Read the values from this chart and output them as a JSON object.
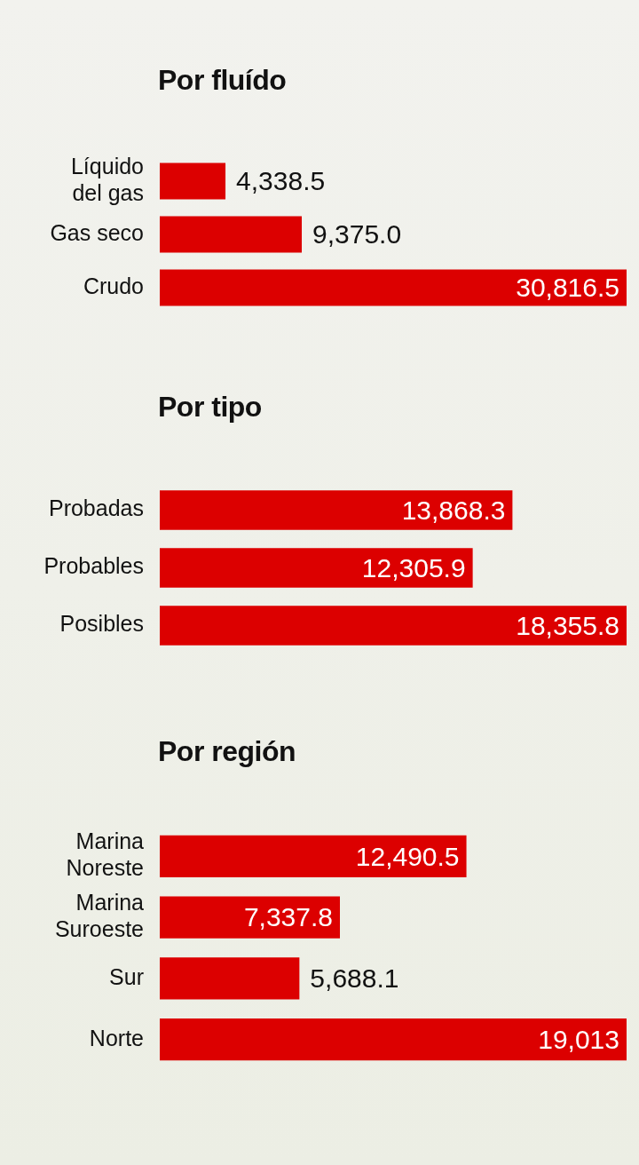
{
  "chart_data": [
    {
      "type": "bar",
      "orientation": "horizontal",
      "title": "Por fluído",
      "categories": [
        "Líquido del gas",
        "Gas seco",
        "Crudo"
      ],
      "values": [
        4338.5,
        9375.0,
        30816.5
      ],
      "value_labels": [
        "4,338.5",
        "9,375.0",
        "30,816.5"
      ],
      "color": "#dc0000"
    },
    {
      "type": "bar",
      "orientation": "horizontal",
      "title": "Por tipo",
      "categories": [
        "Probadas",
        "Probables",
        "Posibles"
      ],
      "values": [
        13868.3,
        12305.9,
        18355.8
      ],
      "value_labels": [
        "13,868.3",
        "12,305.9",
        "18,355.8"
      ],
      "color": "#dc0000"
    },
    {
      "type": "bar",
      "orientation": "horizontal",
      "title": "Por región",
      "categories": [
        "Marina Noreste",
        "Marina Suroeste",
        "Sur",
        "Norte"
      ],
      "values": [
        12490.5,
        7337.8,
        5688.1,
        19013
      ],
      "value_labels": [
        "12,490.5",
        "7,337.8",
        "5,688.1",
        "19,013"
      ],
      "color": "#dc0000"
    }
  ]
}
